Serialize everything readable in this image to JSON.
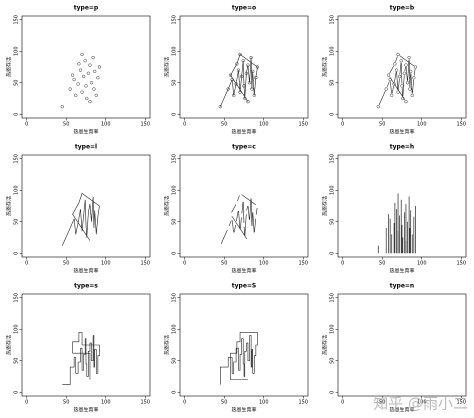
{
  "chart_data": [
    {
      "type": "p",
      "title": "type=p",
      "xlabel": "热恩生育率",
      "ylabel": "热恩存活",
      "xlim": [
        -6,
        156
      ],
      "ylim": [
        -6,
        156
      ],
      "xticks": [
        0,
        50,
        100,
        150
      ],
      "yticks": [
        0,
        50,
        100,
        150
      ],
      "x": [
        45,
        55,
        60,
        62,
        65,
        68,
        70,
        72,
        74,
        75,
        76,
        78,
        80,
        82,
        84,
        85,
        86,
        88,
        90,
        92,
        70,
        66,
        58,
        80
      ],
      "y": [
        12,
        40,
        55,
        30,
        48,
        70,
        35,
        60,
        85,
        45,
        25,
        65,
        78,
        50,
        90,
        40,
        68,
        30,
        58,
        75,
        95,
        80,
        62,
        20
      ]
    },
    {
      "type": "o",
      "title": "type=o",
      "xlabel": "热恩生育率",
      "ylabel": "热恩存活",
      "xlim": [
        -6,
        156
      ],
      "ylim": [
        -6,
        156
      ],
      "xticks": [
        0,
        50,
        100,
        150
      ],
      "yticks": [
        0,
        50,
        100,
        150
      ],
      "x": [
        45,
        55,
        60,
        62,
        65,
        68,
        70,
        72,
        74,
        75,
        76,
        78,
        80,
        82,
        84,
        85,
        86,
        88,
        90,
        92,
        70,
        66,
        58,
        80
      ],
      "y": [
        12,
        40,
        55,
        30,
        48,
        70,
        35,
        60,
        85,
        45,
        25,
        65,
        78,
        50,
        90,
        40,
        68,
        30,
        58,
        75,
        95,
        80,
        62,
        20
      ]
    },
    {
      "type": "b",
      "title": "type=b",
      "xlabel": "热恩生育率",
      "ylabel": "热恩存活",
      "xlim": [
        -6,
        156
      ],
      "ylim": [
        -6,
        156
      ],
      "xticks": [
        0,
        50,
        100,
        150
      ],
      "yticks": [
        0,
        50,
        100,
        150
      ],
      "x": [
        45,
        55,
        60,
        62,
        65,
        68,
        70,
        72,
        74,
        75,
        76,
        78,
        80,
        82,
        84,
        85,
        86,
        88,
        90,
        92,
        70,
        66,
        58,
        80
      ],
      "y": [
        12,
        40,
        55,
        30,
        48,
        70,
        35,
        60,
        85,
        45,
        25,
        65,
        78,
        50,
        90,
        40,
        68,
        30,
        58,
        75,
        95,
        80,
        62,
        20
      ]
    },
    {
      "type": "l",
      "title": "type=l",
      "xlabel": "热恩生育率",
      "ylabel": "热恩存活",
      "xlim": [
        -6,
        156
      ],
      "ylim": [
        -6,
        156
      ],
      "xticks": [
        0,
        50,
        100,
        150
      ],
      "yticks": [
        0,
        50,
        100,
        150
      ],
      "x": [
        45,
        55,
        60,
        62,
        65,
        68,
        70,
        72,
        74,
        75,
        76,
        78,
        80,
        82,
        84,
        85,
        86,
        88,
        90,
        92,
        70,
        66,
        58,
        80
      ],
      "y": [
        12,
        40,
        55,
        30,
        48,
        70,
        35,
        60,
        85,
        45,
        25,
        65,
        78,
        50,
        90,
        40,
        68,
        30,
        58,
        75,
        95,
        80,
        62,
        20
      ]
    },
    {
      "type": "c",
      "title": "type=c",
      "xlabel": "热恩生育率",
      "ylabel": "热恩存活",
      "xlim": [
        -6,
        156
      ],
      "ylim": [
        -6,
        156
      ],
      "xticks": [
        0,
        50,
        100,
        150
      ],
      "yticks": [
        0,
        50,
        100,
        150
      ],
      "x": [
        45,
        55,
        60,
        62,
        65,
        68,
        70,
        72,
        74,
        75,
        76,
        78,
        80,
        82,
        84,
        85,
        86,
        88,
        90,
        92,
        70,
        66,
        58,
        80
      ],
      "y": [
        12,
        40,
        55,
        30,
        48,
        70,
        35,
        60,
        85,
        45,
        25,
        65,
        78,
        50,
        90,
        40,
        68,
        30,
        58,
        75,
        95,
        80,
        62,
        20
      ]
    },
    {
      "type": "h",
      "title": "type=h",
      "xlabel": "热恩生育率",
      "ylabel": "热恩存活",
      "xlim": [
        -6,
        156
      ],
      "ylim": [
        -6,
        156
      ],
      "xticks": [
        0,
        50,
        100,
        150
      ],
      "yticks": [
        0,
        50,
        100,
        150
      ],
      "x": [
        45,
        55,
        60,
        62,
        65,
        68,
        70,
        72,
        74,
        75,
        76,
        78,
        80,
        82,
        84,
        85,
        86,
        88,
        90,
        92,
        70,
        66,
        58,
        80
      ],
      "y": [
        12,
        40,
        55,
        30,
        48,
        70,
        35,
        60,
        85,
        45,
        25,
        65,
        78,
        50,
        90,
        40,
        68,
        30,
        58,
        75,
        95,
        80,
        62,
        20
      ]
    },
    {
      "type": "s",
      "title": "type=s",
      "xlabel": "热恩生育率",
      "ylabel": "热恩存活",
      "xlim": [
        -6,
        156
      ],
      "ylim": [
        -6,
        156
      ],
      "xticks": [
        0,
        50,
        100,
        150
      ],
      "yticks": [
        0,
        50,
        100,
        150
      ],
      "x": [
        45,
        55,
        60,
        62,
        65,
        68,
        70,
        72,
        74,
        75,
        76,
        78,
        80,
        82,
        84,
        85,
        86,
        88,
        90,
        92,
        70,
        66,
        58,
        80
      ],
      "y": [
        12,
        40,
        55,
        30,
        48,
        70,
        35,
        60,
        85,
        45,
        25,
        65,
        78,
        50,
        90,
        40,
        68,
        30,
        58,
        75,
        95,
        80,
        62,
        20
      ]
    },
    {
      "type": "S",
      "title": "type=S",
      "xlabel": "热恩生育率",
      "ylabel": "热恩存活",
      "xlim": [
        -6,
        156
      ],
      "ylim": [
        -6,
        156
      ],
      "xticks": [
        0,
        50,
        100,
        150
      ],
      "yticks": [
        0,
        50,
        100,
        150
      ],
      "x": [
        45,
        55,
        60,
        62,
        65,
        68,
        70,
        72,
        74,
        75,
        76,
        78,
        80,
        82,
        84,
        85,
        86,
        88,
        90,
        92,
        70,
        66,
        58,
        80
      ],
      "y": [
        12,
        40,
        55,
        30,
        48,
        70,
        35,
        60,
        85,
        45,
        25,
        65,
        78,
        50,
        90,
        40,
        68,
        30,
        58,
        75,
        95,
        80,
        62,
        20
      ]
    },
    {
      "type": "n",
      "title": "type=n",
      "xlabel": "热恩生育率",
      "ylabel": "热恩存活",
      "xlim": [
        -6,
        156
      ],
      "ylim": [
        -6,
        156
      ],
      "xticks": [
        0,
        50,
        100,
        150
      ],
      "yticks": [
        0,
        50,
        100,
        150
      ]
    }
  ],
  "watermark": "知乎 @雨小二"
}
